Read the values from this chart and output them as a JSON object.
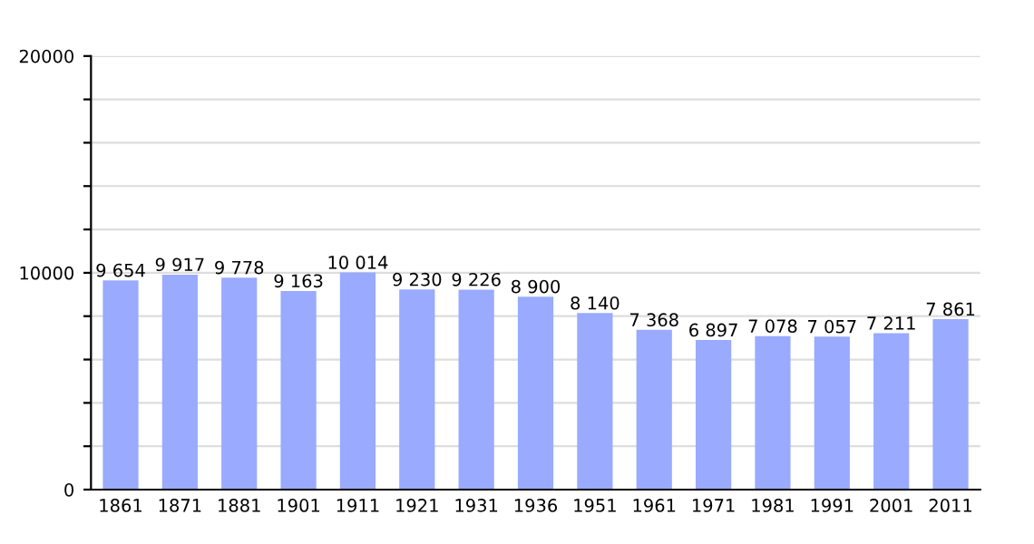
{
  "chart_data": {
    "type": "bar",
    "categories": [
      "1861",
      "1871",
      "1881",
      "1901",
      "1911",
      "1921",
      "1931",
      "1936",
      "1951",
      "1961",
      "1971",
      "1981",
      "1991",
      "2001",
      "2011"
    ],
    "values": [
      9654,
      9917,
      9778,
      9163,
      10014,
      9230,
      9226,
      8900,
      8140,
      7368,
      6897,
      7078,
      7057,
      7211,
      7861
    ],
    "value_labels": [
      "9 654",
      "9 917",
      "9 778",
      "9 163",
      "10 014",
      "9 230",
      "9 226",
      "8 900",
      "8 140",
      "7 368",
      "6 897",
      "7 078",
      "7 057",
      "7 211",
      "7 861"
    ],
    "color": "#99aaff",
    "ylim": [
      0,
      20000
    ],
    "yticks": [
      0,
      {
        "value": 2000,
        "label": null
      },
      {
        "value": 4000,
        "label": null
      },
      {
        "value": 6000,
        "label": null
      },
      {
        "value": 8000,
        "label": null
      },
      10000,
      {
        "value": 12000,
        "label": null
      },
      {
        "value": 14000,
        "label": null
      },
      {
        "value": 16000,
        "label": null
      },
      {
        "value": 18000,
        "label": null
      },
      20000
    ],
    "grid": "y"
  }
}
